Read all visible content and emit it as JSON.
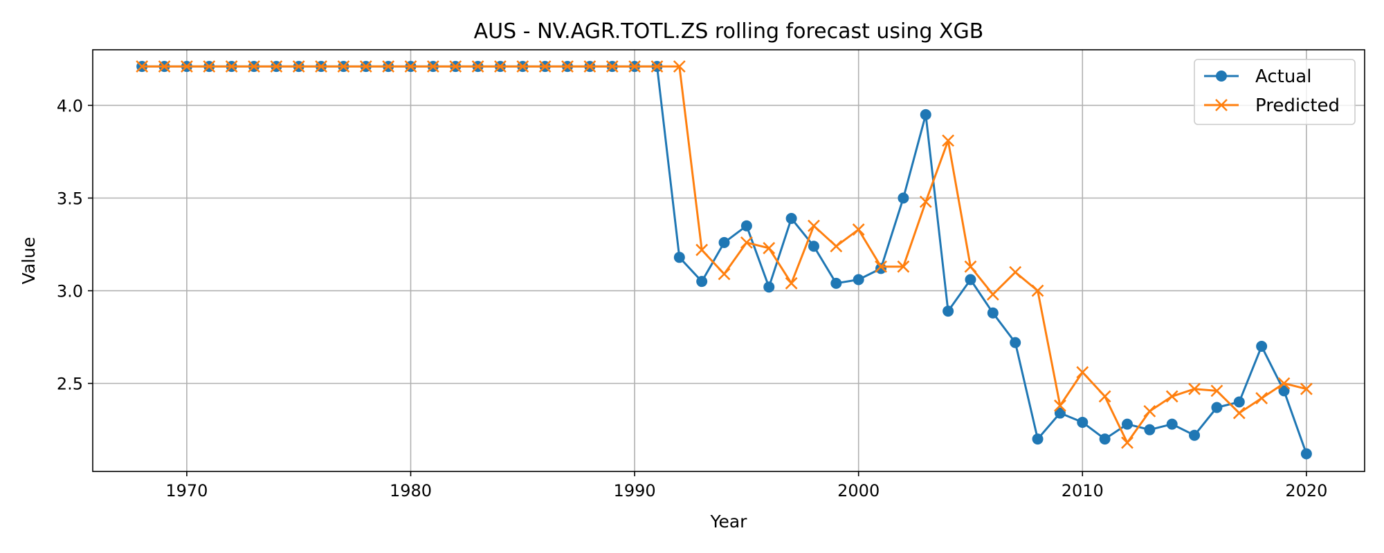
{
  "chart_data": {
    "type": "line",
    "title": "AUS - NV.AGR.TOTL.ZS rolling forecast using XGB",
    "xlabel": "Year",
    "ylabel": "Value",
    "xlim": [
      1965.8,
      2022.6
    ],
    "ylim": [
      2.025,
      4.3
    ],
    "xticks": [
      1970,
      1980,
      1990,
      2000,
      2010,
      2020
    ],
    "yticks": [
      2.5,
      3.0,
      3.5,
      4.0
    ],
    "ytick_labels": [
      "2.5",
      "3.0",
      "3.5",
      "4.0"
    ],
    "grid": true,
    "legend_position": "top-right",
    "x": [
      1968,
      1969,
      1970,
      1971,
      1972,
      1973,
      1974,
      1975,
      1976,
      1977,
      1978,
      1979,
      1980,
      1981,
      1982,
      1983,
      1984,
      1985,
      1986,
      1987,
      1988,
      1989,
      1990,
      1991,
      1992,
      1993,
      1994,
      1995,
      1996,
      1997,
      1998,
      1999,
      2000,
      2001,
      2002,
      2003,
      2004,
      2005,
      2006,
      2007,
      2008,
      2009,
      2010,
      2011,
      2012,
      2013,
      2014,
      2015,
      2016,
      2017,
      2018,
      2019,
      2020
    ],
    "series": [
      {
        "name": "Actual",
        "color": "#1f77b4",
        "marker": "circle",
        "values": [
          4.21,
          4.21,
          4.21,
          4.21,
          4.21,
          4.21,
          4.21,
          4.21,
          4.21,
          4.21,
          4.21,
          4.21,
          4.21,
          4.21,
          4.21,
          4.21,
          4.21,
          4.21,
          4.21,
          4.21,
          4.21,
          4.21,
          4.21,
          4.21,
          3.18,
          3.05,
          3.26,
          3.35,
          3.02,
          3.39,
          3.24,
          3.04,
          3.06,
          3.12,
          3.5,
          3.95,
          2.89,
          3.06,
          2.88,
          2.72,
          2.2,
          2.34,
          2.29,
          2.2,
          2.28,
          2.25,
          2.28,
          2.22,
          2.37,
          2.4,
          2.7,
          2.46,
          2.12
        ]
      },
      {
        "name": "Predicted",
        "color": "#ff7f0e",
        "marker": "x",
        "values": [
          4.21,
          4.21,
          4.21,
          4.21,
          4.21,
          4.21,
          4.21,
          4.21,
          4.21,
          4.21,
          4.21,
          4.21,
          4.21,
          4.21,
          4.21,
          4.21,
          4.21,
          4.21,
          4.21,
          4.21,
          4.21,
          4.21,
          4.21,
          4.21,
          4.21,
          3.22,
          3.09,
          3.26,
          3.23,
          3.04,
          3.35,
          3.24,
          3.33,
          3.13,
          3.13,
          3.48,
          3.81,
          3.13,
          2.98,
          3.1,
          3.0,
          2.38,
          2.56,
          2.43,
          2.18,
          2.35,
          2.43,
          2.47,
          2.46,
          2.34,
          2.42,
          2.5,
          2.47
        ]
      }
    ]
  }
}
